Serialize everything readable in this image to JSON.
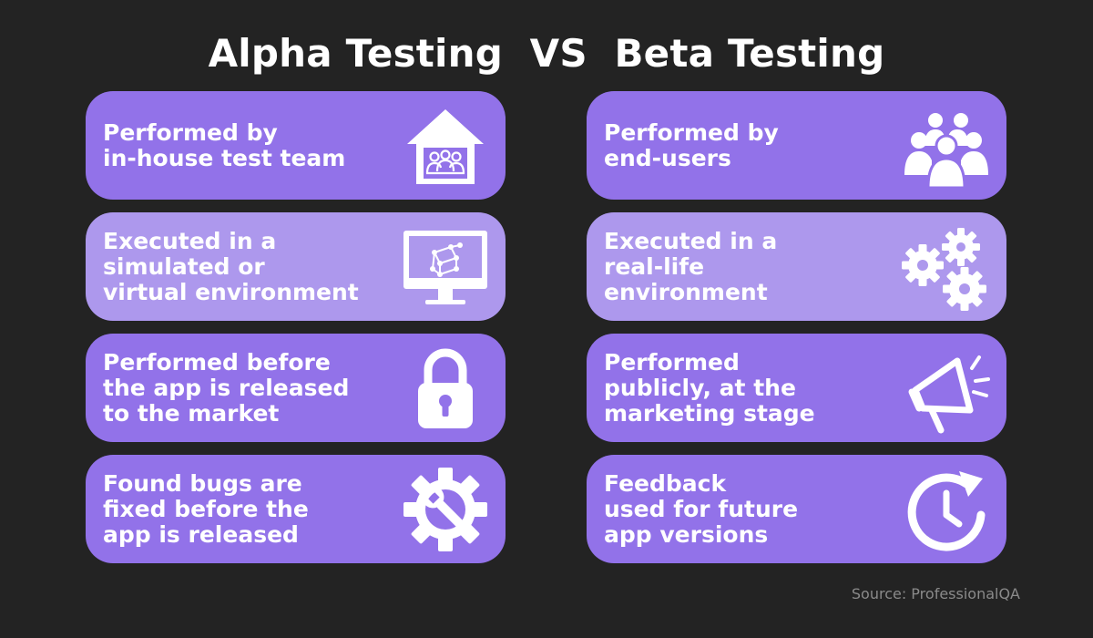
{
  "title": "Alpha Testing  VS  Beta Testing",
  "source": "Source: ProfessionalQA",
  "colors": {
    "background": "#232323",
    "card_dark": "#9272e9",
    "card_light": "#ad98ed",
    "text": "#ffffff"
  },
  "alpha": [
    {
      "lines": [
        "Performed by",
        "in-house test team"
      ],
      "icon": "house-team-icon"
    },
    {
      "lines": [
        "Executed in a",
        "simulated or",
        "virtual environment"
      ],
      "icon": "monitor-cube-icon"
    },
    {
      "lines": [
        "Performed before",
        "the app is released",
        "to the market"
      ],
      "icon": "padlock-icon"
    },
    {
      "lines": [
        "Found bugs are",
        "fixed before the",
        "app is released"
      ],
      "icon": "gear-wrench-icon"
    }
  ],
  "beta": [
    {
      "lines": [
        "Performed by",
        "end-users"
      ],
      "icon": "users-group-icon"
    },
    {
      "lines": [
        "Executed in a",
        "real-life",
        "environment"
      ],
      "icon": "gears-icon"
    },
    {
      "lines": [
        "Performed",
        "publicly, at the",
        "marketing stage"
      ],
      "icon": "megaphone-icon"
    },
    {
      "lines": [
        "Feedback",
        "used for future",
        "app versions"
      ],
      "icon": "clock-refresh-icon"
    }
  ]
}
